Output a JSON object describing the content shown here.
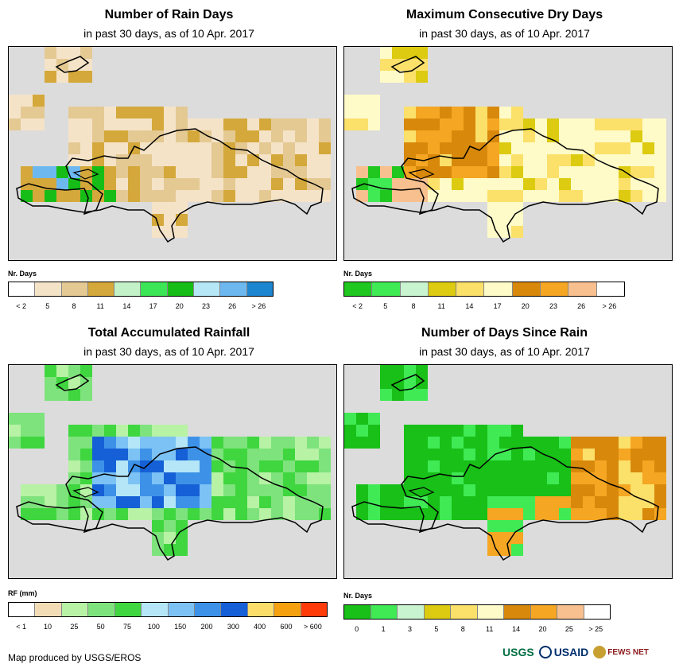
{
  "panels": [
    {
      "id": "rain-days",
      "title": "Number of Rain Days",
      "subtitle": "in past 30 days, as of 10 Apr. 2017",
      "legend_title": "Nr. Days",
      "legend_colors": [
        "#ffffff",
        "#f5e3c8",
        "#e4c993",
        "#d4a83a",
        "#c4f2c8",
        "#3de656",
        "#17bd17",
        "#b6e7f7",
        "#6eb8f0",
        "#1c86d0"
      ],
      "legend_labels": [
        "< 2",
        "5",
        "8",
        "11",
        "14",
        "17",
        "20",
        "23",
        "26",
        "> 26"
      ]
    },
    {
      "id": "dry-days",
      "title": "Maximum Consecutive Dry Days",
      "subtitle": "in past 30 days, as of 10 Apr. 2017",
      "legend_title": "Nr. Days",
      "legend_colors": [
        "#1fc71f",
        "#40ea55",
        "#c8f5cf",
        "#dccb10",
        "#fbe06a",
        "#fefbc8",
        "#d8890b",
        "#f5a623",
        "#f7c08e",
        "#ffffff"
      ],
      "legend_labels": [
        "< 2",
        "5",
        "8",
        "11",
        "14",
        "17",
        "20",
        "23",
        "26",
        "> 26"
      ]
    },
    {
      "id": "rainfall",
      "title": "Total Accumulated Rainfall",
      "subtitle": "in past 30 days, as of 10 Apr. 2017",
      "legend_title": "RF (mm)",
      "legend_colors": [
        "#ffffff",
        "#f1dcb6",
        "#b7f2a5",
        "#7ee37c",
        "#3fd63f",
        "#b4e6f7",
        "#7cc2f4",
        "#3d92e8",
        "#1560d6",
        "#fbdd6a",
        "#f5a00e",
        "#ff3b0a"
      ],
      "legend_labels": [
        "< 1",
        "10",
        "25",
        "50",
        "75",
        "100",
        "150",
        "200",
        "300",
        "400",
        "600",
        "> 600"
      ]
    },
    {
      "id": "since-rain",
      "title": "Number of Days Since Rain",
      "subtitle": "in past 30 days, as of 10 Apr. 2017",
      "legend_title": "Nr. Days",
      "legend_colors": [
        "#18c018",
        "#40ea55",
        "#c8f5cf",
        "#dccb10",
        "#fbe06a",
        "#fefbc8",
        "#d8890b",
        "#f5a623",
        "#f7c08e",
        "#ffffff"
      ],
      "legend_labels": [
        "0",
        "1",
        "3",
        "5",
        "8",
        "11",
        "14",
        "20",
        "25",
        "> 25"
      ]
    }
  ],
  "footer": "Map produced by USGS/EROS",
  "logos": {
    "usgs": "USGS",
    "usaid": "USAID",
    "fews": "FEWS NET"
  },
  "colors": {
    "map_bg": "#dcdcdc"
  }
}
